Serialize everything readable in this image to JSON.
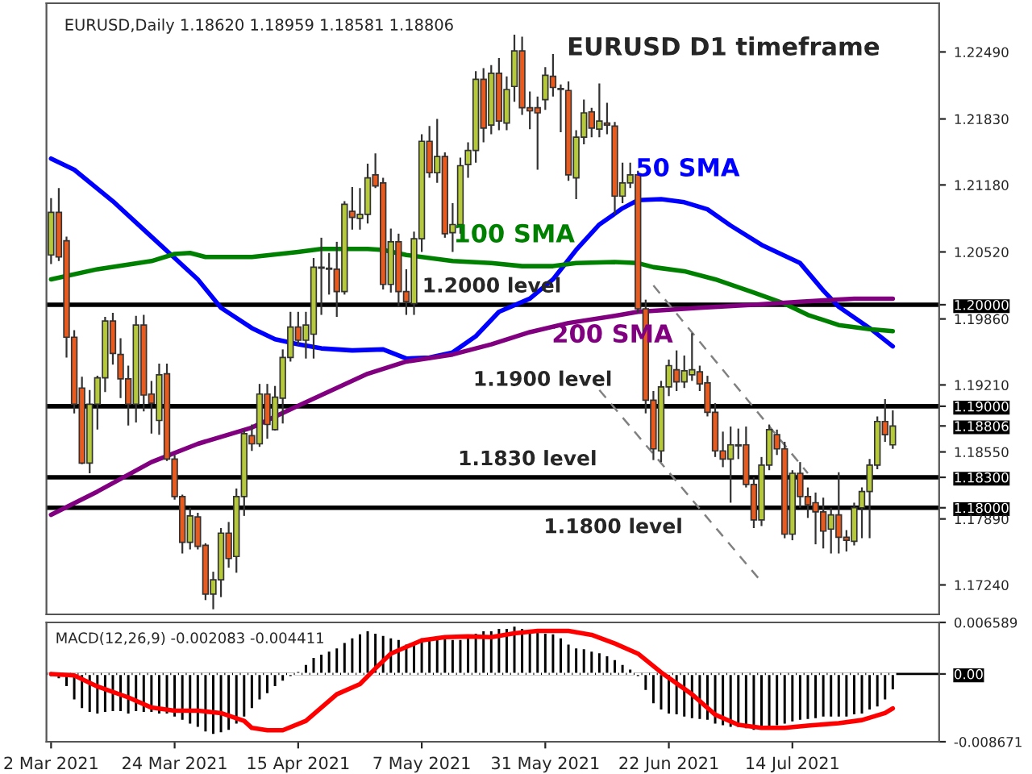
{
  "chart_data": [
    {
      "type": "candlestick",
      "title": "EURUSD D1 timeframe",
      "annotations": [
        "EURUSD,Daily 1.18620 1.18959 1.18581 1.18806"
      ],
      "categories": [
        null,
        null,
        null,
        null,
        null,
        null,
        null,
        null,
        null,
        null,
        null,
        null,
        null,
        null,
        null,
        null,
        null,
        null,
        null,
        null,
        null,
        null,
        null,
        null,
        null,
        null,
        null,
        null,
        null,
        null,
        null,
        null,
        null,
        null,
        null,
        null,
        null,
        null,
        null,
        null,
        null,
        null,
        null,
        null,
        null,
        null,
        null,
        null,
        null,
        null,
        null,
        null,
        null,
        null,
        null,
        null,
        null,
        null,
        null,
        null,
        null,
        null,
        null,
        null,
        null,
        null,
        null,
        null,
        null,
        null,
        null,
        null,
        null,
        null,
        null,
        null,
        null,
        null,
        null,
        null,
        null,
        null,
        null,
        null,
        null,
        null,
        null,
        null,
        null,
        null,
        null,
        null,
        null,
        null,
        null,
        null,
        null,
        null,
        null,
        null,
        null,
        null,
        null,
        null,
        null,
        null,
        null,
        null,
        null,
        null
      ],
      "ohlc": [
        [
          1.2049,
          1.2105,
          1.204,
          1.2091
        ],
        [
          1.2091,
          1.2115,
          1.2043,
          1.2047
        ],
        [
          1.2063,
          1.2067,
          1.1948,
          1.1968
        ],
        [
          1.1968,
          1.1975,
          1.1893,
          1.1902
        ],
        [
          1.1918,
          1.1929,
          1.1843,
          1.1844
        ],
        [
          1.1844,
          1.1916,
          1.1834,
          1.1902
        ],
        [
          1.1902,
          1.193,
          1.1877,
          1.1928
        ],
        [
          1.1928,
          1.1988,
          1.1914,
          1.1984
        ],
        [
          1.1984,
          1.1992,
          1.1941,
          1.1952
        ],
        [
          1.1951,
          1.1967,
          1.1908,
          1.1927
        ],
        [
          1.1927,
          1.194,
          1.1881,
          1.1902
        ],
        [
          1.1902,
          1.1989,
          1.1884,
          1.198
        ],
        [
          1.198,
          1.199,
          1.1895,
          1.1911
        ],
        [
          1.1912,
          1.1925,
          1.1873,
          1.1903
        ],
        [
          1.1886,
          1.1942,
          1.1872,
          1.1931
        ],
        [
          1.1932,
          1.1942,
          1.1846,
          1.1848
        ],
        [
          1.1848,
          1.1852,
          1.1808,
          1.1811
        ],
        [
          1.1811,
          1.1813,
          1.1755,
          1.1766
        ],
        [
          1.1766,
          1.18,
          1.1759,
          1.1792
        ],
        [
          1.1791,
          1.1795,
          1.1759,
          1.1762
        ],
        [
          1.1763,
          1.1765,
          1.1709,
          1.1715
        ],
        [
          1.1715,
          1.1737,
          1.17,
          1.1729
        ],
        [
          1.1729,
          1.178,
          1.1712,
          1.1775
        ],
        [
          1.1775,
          1.1786,
          1.1741,
          1.175
        ],
        [
          1.1752,
          1.1819,
          1.1736,
          1.1811
        ],
        [
          1.1811,
          1.1877,
          1.1792,
          1.1873
        ],
        [
          1.1871,
          1.1882,
          1.1856,
          1.1863
        ],
        [
          1.1863,
          1.1922,
          1.186,
          1.1912
        ],
        [
          1.1912,
          1.1922,
          1.1868,
          1.1882
        ],
        [
          1.1877,
          1.192,
          1.1876,
          1.1909
        ],
        [
          1.1908,
          1.1956,
          1.1883,
          1.1948
        ],
        [
          1.1948,
          1.1993,
          1.1944,
          1.1978
        ],
        [
          1.1978,
          1.1993,
          1.196,
          1.1965
        ],
        [
          1.1965,
          1.1993,
          1.1947,
          1.198
        ],
        [
          1.1971,
          1.2046,
          1.1947,
          1.2037
        ],
        [
          1.2037,
          1.2066,
          1.199,
          1.2036
        ],
        [
          1.2036,
          1.2051,
          1.201,
          1.2035
        ],
        [
          1.2035,
          1.2062,
          1.1988,
          1.2013
        ],
        [
          1.2013,
          1.2102,
          1.201,
          1.2099
        ],
        [
          1.2092,
          1.2116,
          1.2074,
          1.2086
        ],
        [
          1.2085,
          1.2115,
          1.2074,
          1.2089
        ],
        [
          1.2089,
          1.2139,
          1.208,
          1.2125
        ],
        [
          1.2128,
          1.2149,
          1.2115,
          1.2117
        ],
        [
          1.212,
          1.2125,
          1.2015,
          1.202
        ],
        [
          1.202,
          1.2075,
          1.2012,
          1.2062
        ],
        [
          1.2062,
          1.207,
          1.1998,
          1.2013
        ],
        [
          1.2013,
          1.2035,
          1.199,
          1.2003
        ],
        [
          1.2001,
          1.2072,
          1.199,
          1.2065
        ],
        [
          1.2065,
          1.2168,
          1.2052,
          1.2161
        ],
        [
          1.2161,
          1.2176,
          1.2125,
          1.213
        ],
        [
          1.213,
          1.2183,
          1.212,
          1.2146
        ],
        [
          1.2146,
          1.215,
          1.2066,
          1.207
        ],
        [
          1.2071,
          1.21,
          1.2052,
          1.2079
        ],
        [
          1.2079,
          1.2145,
          1.207,
          1.2137
        ],
        [
          1.2138,
          1.216,
          1.2125,
          1.2152
        ],
        [
          1.2152,
          1.223,
          1.214,
          1.2222
        ],
        [
          1.2222,
          1.2233,
          1.216,
          1.2174
        ],
        [
          1.2177,
          1.2236,
          1.2168,
          1.2228
        ],
        [
          1.2228,
          1.2243,
          1.2172,
          1.2181
        ],
        [
          1.2179,
          1.2225,
          1.2172,
          1.2212
        ],
        [
          1.2215,
          1.2266,
          1.22,
          1.225
        ],
        [
          1.225,
          1.2264,
          1.2187,
          1.2194
        ],
        [
          1.2194,
          1.221,
          1.2173,
          1.2191
        ],
        [
          1.2194,
          1.2205,
          1.2133,
          1.2189
        ],
        [
          1.2202,
          1.2234,
          1.2192,
          1.2226
        ],
        [
          1.2225,
          1.2247,
          1.2205,
          1.2214
        ],
        [
          1.2213,
          1.2217,
          1.217,
          1.2212
        ],
        [
          1.2211,
          1.222,
          1.2122,
          1.2128
        ],
        [
          1.2125,
          1.2172,
          1.2104,
          1.2165
        ],
        [
          1.2165,
          1.2202,
          1.2158,
          1.2189
        ],
        [
          1.219,
          1.2194,
          1.2165,
          1.2174
        ],
        [
          1.2173,
          1.2218,
          1.2165,
          1.2181
        ],
        [
          1.2179,
          1.2199,
          1.2168,
          1.2177
        ],
        [
          1.2176,
          1.218,
          1.2089,
          1.2107
        ],
        [
          1.2107,
          1.214,
          1.21,
          1.212
        ],
        [
          1.212,
          1.214,
          1.2115,
          1.2128
        ],
        [
          1.2128,
          1.2132,
          1.1992,
          1.1996
        ],
        [
          1.1996,
          1.2005,
          1.1893,
          1.1906
        ],
        [
          1.1906,
          1.1915,
          1.1847,
          1.1858
        ],
        [
          1.1856,
          1.1925,
          1.1845,
          1.1919
        ],
        [
          1.1919,
          1.1946,
          1.191,
          1.194
        ],
        [
          1.1936,
          1.1955,
          1.1915,
          1.1924
        ],
        [
          1.1924,
          1.195,
          1.1918,
          1.1935
        ],
        [
          1.1931,
          1.1972,
          1.1925,
          1.1936
        ],
        [
          1.1934,
          1.194,
          1.1915,
          1.1922
        ],
        [
          1.1923,
          1.193,
          1.189,
          1.1894
        ],
        [
          1.1894,
          1.1903,
          1.185,
          1.1856
        ],
        [
          1.1856,
          1.1875,
          1.184,
          1.1848
        ],
        [
          1.1848,
          1.188,
          1.1805,
          1.1862
        ],
        [
          1.1861,
          1.1878,
          1.1848,
          1.1862
        ],
        [
          1.1862,
          1.188,
          1.182,
          1.1823
        ],
        [
          1.1823,
          1.183,
          1.178,
          1.1788
        ],
        [
          1.1788,
          1.185,
          1.1782,
          1.1842
        ],
        [
          1.1842,
          1.1882,
          1.1837,
          1.1877
        ],
        [
          1.1872,
          1.1877,
          1.1852,
          1.1858
        ],
        [
          1.1858,
          1.1865,
          1.177,
          1.1774
        ],
        [
          1.1774,
          1.1837,
          1.1768,
          1.1834
        ],
        [
          1.1834,
          1.1845,
          1.18,
          1.1811
        ],
        [
          1.1811,
          1.182,
          1.179,
          1.1803
        ],
        [
          1.1805,
          1.1815,
          1.1764,
          1.1796
        ],
        [
          1.1796,
          1.181,
          1.176,
          1.1777
        ],
        [
          1.1779,
          1.18,
          1.1755,
          1.1793
        ],
        [
          1.1793,
          1.1835,
          1.1755,
          1.1771
        ],
        [
          1.1771,
          1.1778,
          1.1757,
          1.1768
        ],
        [
          1.1767,
          1.1805,
          1.1763,
          1.18
        ],
        [
          1.18,
          1.182,
          1.177,
          1.1816
        ],
        [
          1.1816,
          1.1848,
          1.177,
          1.1842
        ],
        [
          1.1842,
          1.189,
          1.1838,
          1.1885
        ],
        [
          1.1885,
          1.1907,
          1.1865,
          1.1872
        ],
        [
          1.1862,
          1.18959,
          1.18581,
          1.18806
        ]
      ],
      "series": [
        {
          "type": "line",
          "name": "50 SMA",
          "color": "#0000ff",
          "values": [
            1.2144,
            null,
            null,
            1.2133,
            null,
            null,
            null,
            null,
            1.2102,
            null,
            null,
            null,
            null,
            1.2067,
            null,
            null,
            1.2046,
            null,
            null,
            1.2025,
            null,
            null,
            1.1997,
            null,
            null,
            null,
            1.1977,
            null,
            null,
            1.1966,
            null,
            null,
            1.1961,
            null,
            null,
            1.1957,
            null,
            null,
            null,
            1.1955,
            null,
            null,
            null,
            1.1956,
            null,
            null,
            1.1947,
            null,
            null,
            1.1948,
            null,
            null,
            1.1953,
            null,
            null,
            1.1969,
            null,
            null,
            1.1993,
            null,
            null,
            null,
            1.2006,
            null,
            null,
            1.2025,
            null,
            null,
            1.2054,
            null,
            null,
            1.2079,
            null,
            null,
            1.2095,
            null,
            1.2103,
            null,
            null,
            1.2104,
            null,
            null,
            1.2101,
            null,
            null,
            1.2094,
            null,
            null,
            1.2078,
            null,
            null,
            null,
            1.2059,
            null,
            null,
            null,
            null,
            1.2041,
            null,
            null,
            1.2014,
            null,
            1.1998,
            null,
            null,
            null,
            1.1977,
            null,
            null,
            1.1959
          ]
        },
        {
          "type": "line",
          "name": "100 SMA",
          "color": "#008000",
          "values": [
            1.2025,
            null,
            null,
            null,
            null,
            null,
            1.2035,
            null,
            null,
            null,
            null,
            null,
            null,
            1.2043,
            null,
            null,
            1.205,
            null,
            1.2051,
            null,
            1.2047,
            null,
            null,
            null,
            null,
            null,
            1.2047,
            null,
            null,
            null,
            null,
            null,
            1.2052,
            null,
            null,
            1.2055,
            null,
            null,
            null,
            null,
            null,
            1.2055,
            null,
            1.2054,
            null,
            null,
            1.2049,
            null,
            null,
            null,
            null,
            null,
            1.2043,
            null,
            null,
            null,
            null,
            1.2041,
            null,
            null,
            null,
            1.2038,
            null,
            null,
            null,
            1.2038,
            null,
            null,
            1.2041,
            null,
            null,
            null,
            null,
            1.2042,
            null,
            null,
            1.2041,
            null,
            1.2037,
            null,
            null,
            null,
            1.2033,
            null,
            null,
            null,
            1.2025,
            null,
            null,
            null,
            null,
            1.2012,
            null,
            null,
            null,
            1.2001,
            null,
            null,
            1.199,
            null,
            null,
            null,
            1.198,
            null,
            null,
            null,
            1.1976,
            null,
            null,
            1.1974
          ]
        },
        {
          "type": "line",
          "name": "200 SMA",
          "color": "#800080",
          "values": [
            1.1793,
            null,
            null,
            null,
            null,
            null,
            1.1816,
            null,
            null,
            null,
            null,
            null,
            null,
            1.1845,
            null,
            null,
            null,
            null,
            null,
            1.1863,
            null,
            null,
            null,
            null,
            null,
            null,
            1.1879,
            null,
            null,
            null,
            null,
            1.1897,
            null,
            null,
            null,
            1.1911,
            null,
            null,
            null,
            null,
            null,
            1.1932,
            null,
            null,
            null,
            null,
            1.1944,
            null,
            null,
            null,
            null,
            null,
            1.1951,
            null,
            null,
            null,
            null,
            1.1961,
            null,
            null,
            null,
            null,
            1.1973,
            null,
            null,
            null,
            null,
            1.1982,
            null,
            null,
            null,
            null,
            null,
            1.1989,
            null,
            null,
            1.1993,
            null,
            1.1994,
            null,
            null,
            null,
            null,
            null,
            1.1997,
            null,
            null,
            null,
            null,
            null,
            null,
            1.2,
            null,
            null,
            null,
            null,
            null,
            1.2003,
            null,
            null,
            null,
            null,
            null,
            null,
            1.2006,
            null,
            null,
            null,
            null,
            1.2006
          ]
        },
        {
          "type": "line",
          "color": "#808080",
          "line_style": "dashed",
          "values": [
            null,
            null,
            null,
            null,
            null,
            null,
            null,
            null,
            null,
            null,
            null,
            null,
            null,
            null,
            null,
            null,
            null,
            null,
            null,
            null,
            null,
            null,
            null,
            null,
            null,
            null,
            null,
            null,
            null,
            null,
            null,
            null,
            null,
            null,
            null,
            null,
            null,
            null,
            null,
            null,
            null,
            null,
            null,
            null,
            null,
            null,
            null,
            null,
            null,
            null,
            null,
            null,
            null,
            null,
            null,
            null,
            null,
            null,
            null,
            null,
            null,
            null,
            null,
            null,
            null,
            null,
            null,
            null,
            null,
            null,
            null,
            null,
            null,
            null,
            null,
            null,
            null,
            null,
            1.2019,
            null,
            null,
            null,
            null,
            null,
            null,
            null,
            null,
            null,
            null,
            null,
            null,
            null,
            null,
            null,
            null,
            null,
            null,
            null,
            1.1834,
            null,
            null,
            null,
            null,
            null,
            null,
            null,
            null,
            null,
            null,
            null
          ]
        },
        {
          "type": "line",
          "color": "#808080",
          "line_style": "dashed",
          "values": [
            null,
            null,
            null,
            null,
            null,
            null,
            null,
            null,
            null,
            null,
            null,
            null,
            null,
            null,
            null,
            null,
            null,
            null,
            null,
            null,
            null,
            null,
            null,
            null,
            null,
            null,
            null,
            null,
            null,
            null,
            null,
            null,
            null,
            null,
            null,
            null,
            null,
            null,
            null,
            null,
            null,
            null,
            null,
            null,
            null,
            null,
            null,
            null,
            null,
            null,
            null,
            null,
            null,
            null,
            null,
            null,
            null,
            null,
            null,
            null,
            null,
            null,
            null,
            null,
            null,
            null,
            null,
            null,
            null,
            null,
            null,
            1.1916,
            null,
            null,
            null,
            null,
            null,
            null,
            null,
            null,
            null,
            null,
            null,
            null,
            null,
            null,
            null,
            null,
            null,
            null,
            null,
            null,
            1.1727,
            null,
            null,
            null,
            null,
            null,
            null,
            null,
            null,
            null,
            null,
            null,
            null,
            null,
            null,
            null,
            null,
            null
          ]
        }
      ],
      "ref_lines": [
        {
          "axis": "y",
          "value": 1.2,
          "label": "1.2000 level",
          "color": "#000000"
        },
        {
          "axis": "y",
          "value": 1.19,
          "label": "1.1900 level",
          "color": "#000000"
        },
        {
          "axis": "y",
          "value": 1.183,
          "label": "1.1830 level",
          "color": "#000000"
        },
        {
          "axis": "y",
          "value": 1.18,
          "label": "1.1800 level",
          "color": "#000000"
        }
      ],
      "ylim": [
        1.1695,
        1.2297
      ],
      "yticks": [
        {
          "value": 1.2249,
          "label": "1.22490"
        },
        {
          "value": 1.2183,
          "label": "1.21830"
        },
        {
          "value": 1.2118,
          "label": "1.21180"
        },
        {
          "value": 1.2052,
          "label": "1.20520"
        },
        {
          "value": 1.2,
          "label": "1.20000"
        },
        {
          "value": 1.1986,
          "label": "1.19860"
        },
        {
          "value": 1.1921,
          "label": "1.19210"
        },
        {
          "value": 1.19,
          "label": "1.19000"
        },
        {
          "value": 1.18806,
          "label": "1.18806"
        },
        {
          "value": 1.1855,
          "label": "1.18550"
        },
        {
          "value": 1.183,
          "label": "1.18300"
        },
        {
          "value": 1.18,
          "label": "1.18000"
        },
        {
          "value": 1.1789,
          "label": "1.17890"
        },
        {
          "value": 1.1724,
          "label": "1.17240"
        }
      ],
      "tick_labels": "y"
    },
    {
      "type": "bar",
      "title": "MACD(12,26,9) -0.002083 -0.004411",
      "categories": [
        "2 Mar 2021",
        null,
        null,
        null,
        null,
        null,
        null,
        null,
        null,
        null,
        null,
        null,
        null,
        null,
        null,
        null,
        "24 Mar 2021",
        null,
        null,
        null,
        null,
        null,
        null,
        null,
        null,
        null,
        null,
        null,
        null,
        null,
        null,
        null,
        "15 Apr 2021",
        null,
        null,
        null,
        null,
        null,
        null,
        null,
        null,
        null,
        null,
        null,
        null,
        null,
        null,
        null,
        "7 May 2021",
        null,
        null,
        null,
        null,
        null,
        null,
        null,
        null,
        null,
        null,
        null,
        null,
        null,
        null,
        null,
        "31 May 2021",
        null,
        null,
        null,
        null,
        null,
        null,
        null,
        null,
        null,
        null,
        null,
        null,
        null,
        null,
        null,
        "22 Jun 2021",
        null,
        null,
        null,
        null,
        null,
        null,
        null,
        null,
        null,
        null,
        null,
        null,
        null,
        null,
        null,
        "14 Jul 2021",
        null,
        null,
        null,
        null,
        null,
        null,
        null,
        null,
        null,
        null,
        null,
        null,
        null
      ],
      "series": [
        {
          "color": "#000000",
          "values": [
            -0.0004,
            -0.0007,
            -0.0017,
            -0.0034,
            -0.0045,
            -0.005,
            -0.0052,
            -0.005,
            -0.0049,
            -0.0049,
            -0.0052,
            -0.0049,
            -0.005,
            -0.005,
            -0.0052,
            -0.0052,
            -0.0056,
            -0.006,
            -0.0065,
            -0.0069,
            -0.0075,
            -0.0078,
            -0.0076,
            -0.0073,
            -0.0065,
            -0.0056,
            -0.0045,
            -0.0034,
            -0.0026,
            -0.0017,
            -0.001,
            -0.0004,
            0.0004,
            0.0013,
            0.0022,
            0.0026,
            0.003,
            0.0034,
            0.0041,
            0.0047,
            0.0052,
            0.0056,
            0.0053,
            0.005,
            0.0047,
            0.0045,
            0.0039,
            0.0039,
            0.0047,
            0.0047,
            0.0047,
            0.0047,
            0.0045,
            0.0045,
            0.0047,
            0.0053,
            0.0056,
            0.0056,
            0.0059,
            0.0059,
            0.0062,
            0.0059,
            0.0056,
            0.0054,
            0.0053,
            0.0052,
            0.0047,
            0.0039,
            0.0034,
            0.0033,
            0.003,
            0.0028,
            0.0024,
            0.0019,
            0.0013,
            0.0007,
            -0.0004,
            -0.0022,
            -0.0039,
            -0.0047,
            -0.0052,
            -0.0053,
            -0.0056,
            -0.0058,
            -0.0059,
            -0.006,
            -0.0065,
            -0.0067,
            -0.0069,
            -0.0069,
            -0.0071,
            -0.0073,
            -0.0071,
            -0.0069,
            -0.0067,
            -0.0065,
            -0.0062,
            -0.006,
            -0.0059,
            -0.0058,
            -0.0056,
            -0.0056,
            -0.0056,
            -0.0056,
            -0.0053,
            -0.0052,
            -0.0047,
            -0.0043,
            -0.0034,
            -0.0021
          ]
        },
        {
          "type": "line",
          "color": "#ff0000",
          "values": [
            0,
            null,
            null,
            -0.0002,
            null,
            null,
            -0.0016,
            null,
            null,
            null,
            -0.003,
            null,
            null,
            -0.0043,
            null,
            null,
            -0.0047,
            null,
            null,
            -0.0047,
            null,
            null,
            -0.005,
            null,
            null,
            -0.006,
            -0.0069,
            null,
            -0.0072,
            null,
            -0.0072,
            null,
            null,
            -0.006,
            null,
            -0.0043,
            null,
            -0.0026,
            null,
            null,
            -0.0013,
            null,
            0.0007,
            null,
            0.0026,
            null,
            null,
            null,
            0.0043,
            null,
            null,
            0.0047,
            null,
            null,
            0.0048,
            null,
            null,
            0.0047,
            null,
            null,
            0.0052,
            null,
            null,
            0.0055,
            null,
            null,
            null,
            0.0055,
            null,
            null,
            0.005,
            null,
            null,
            0.0039,
            null,
            null,
            0.0026,
            null,
            null,
            0.0002,
            null,
            null,
            null,
            -0.0026,
            null,
            null,
            -0.0052,
            null,
            null,
            -0.0065,
            null,
            null,
            -0.0069,
            null,
            null,
            -0.0069,
            null,
            null,
            -0.0066,
            null,
            null,
            null,
            -0.0063,
            null,
            null,
            -0.0059,
            null,
            null,
            -0.005,
            -0.0044
          ]
        }
      ],
      "ref_lines": [
        {
          "axis": "y",
          "value": 0,
          "color": "#000000"
        }
      ],
      "ylim": [
        -0.008671,
        0.006589
      ],
      "yticks": [
        {
          "value": 0.006589,
          "label": "0.006589"
        },
        {
          "value": 0,
          "label": "0.00"
        },
        {
          "value": -0.008671,
          "label": "-0.008671"
        }
      ]
    }
  ]
}
